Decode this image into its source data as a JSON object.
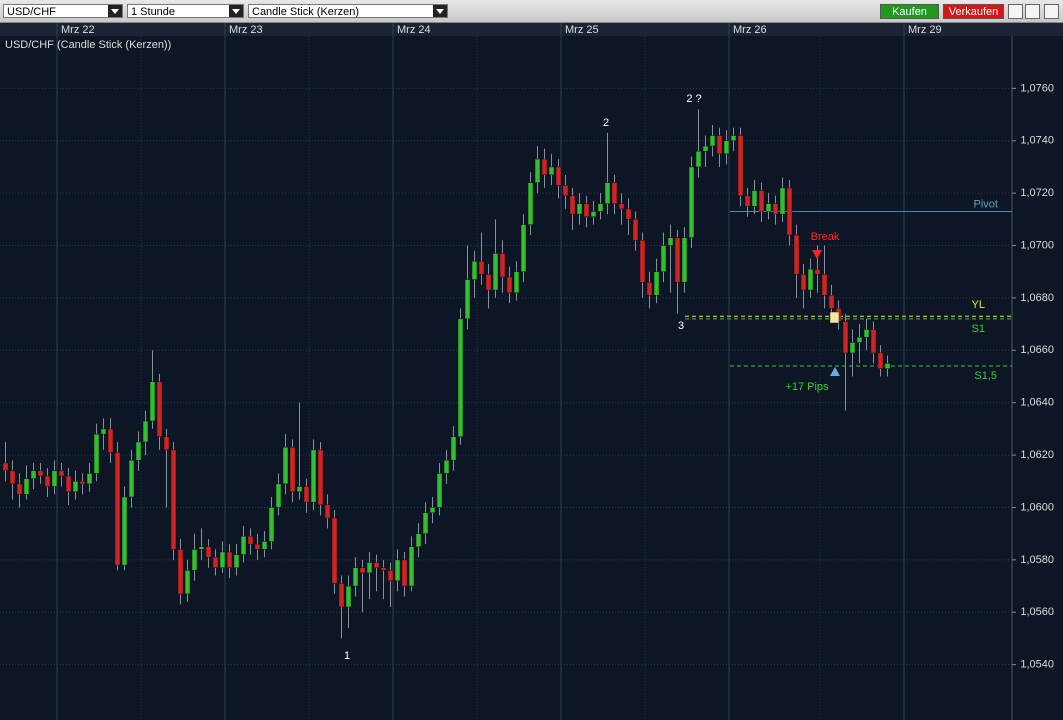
{
  "toolbar": {
    "symbol": "USD/CHF",
    "interval": "1 Stunde",
    "chart_type": "Candle Stick (Kerzen)",
    "buy": "Kaufen",
    "sell": "Verkaufen"
  },
  "chart_data": {
    "type": "candlestick",
    "title": "USD/CHF (Candle Stick (Kerzen))",
    "xticks": [
      {
        "value": 8,
        "label": "Mrz 22"
      },
      {
        "value": 32,
        "label": "Mrz 23"
      },
      {
        "value": 56,
        "label": "Mrz 24"
      },
      {
        "value": 80,
        "label": "Mrz 25"
      },
      {
        "value": 104,
        "label": "Mrz 26"
      },
      {
        "value": 129,
        "label": "Mrz 29"
      }
    ],
    "ylim": [
      1.052,
      1.078
    ],
    "yticks": [
      {
        "value": 1.054,
        "label": "1,0540"
      },
      {
        "value": 1.056,
        "label": "1,0560"
      },
      {
        "value": 1.058,
        "label": "1,0580"
      },
      {
        "value": 1.06,
        "label": "1,0600"
      },
      {
        "value": 1.062,
        "label": "1,0620"
      },
      {
        "value": 1.064,
        "label": "1,0640"
      },
      {
        "value": 1.066,
        "label": "1,0660"
      },
      {
        "value": 1.068,
        "label": "1,0680"
      },
      {
        "value": 1.07,
        "label": "1,0700"
      },
      {
        "value": 1.072,
        "label": "1,0720"
      },
      {
        "value": 1.074,
        "label": "1,0740"
      },
      {
        "value": 1.076,
        "label": "1,0760"
      }
    ],
    "grid": true,
    "up_color": "#2fbf2f",
    "down_color": "#d42222",
    "ohlc": [
      [
        1.0617,
        1.0625,
        1.061,
        1.0614
      ],
      [
        1.0614,
        1.0618,
        1.0603,
        1.0609
      ],
      [
        1.0609,
        1.0613,
        1.06,
        1.0605
      ],
      [
        1.0605,
        1.0616,
        1.0603,
        1.0611
      ],
      [
        1.0611,
        1.0617,
        1.0607,
        1.0614
      ],
      [
        1.0614,
        1.0617,
        1.0609,
        1.0612
      ],
      [
        1.0612,
        1.0615,
        1.0604,
        1.0608
      ],
      [
        1.0608,
        1.0618,
        1.0605,
        1.0614
      ],
      [
        1.0614,
        1.0617,
        1.0608,
        1.0612
      ],
      [
        1.0612,
        1.0615,
        1.0601,
        1.0606
      ],
      [
        1.0606,
        1.0614,
        1.0603,
        1.061
      ],
      [
        1.061,
        1.0613,
        1.0605,
        1.0609
      ],
      [
        1.0609,
        1.0617,
        1.0606,
        1.0613
      ],
      [
        1.0613,
        1.0632,
        1.061,
        1.0628
      ],
      [
        1.0628,
        1.0634,
        1.0622,
        1.063
      ],
      [
        1.063,
        1.0634,
        1.0617,
        1.0621
      ],
      [
        1.0621,
        1.0625,
        1.0576,
        1.0578
      ],
      [
        1.0578,
        1.0608,
        1.0576,
        1.0604
      ],
      [
        1.0604,
        1.0622,
        1.06,
        1.0618
      ],
      [
        1.0618,
        1.0629,
        1.0614,
        1.0625
      ],
      [
        1.0625,
        1.0637,
        1.062,
        1.0633
      ],
      [
        1.0633,
        1.066,
        1.063,
        1.0648
      ],
      [
        1.0648,
        1.0651,
        1.0622,
        1.0627
      ],
      [
        1.0627,
        1.063,
        1.06,
        1.0622
      ],
      [
        1.0622,
        1.0625,
        1.058,
        1.0584
      ],
      [
        1.0584,
        1.0588,
        1.0563,
        1.0567
      ],
      [
        1.0567,
        1.058,
        1.0564,
        1.0576
      ],
      [
        1.0576,
        1.059,
        1.0572,
        1.0584
      ],
      [
        1.0584,
        1.0592,
        1.058,
        1.0585
      ],
      [
        1.0585,
        1.0588,
        1.0577,
        1.0581
      ],
      [
        1.0581,
        1.0584,
        1.0574,
        1.0577
      ],
      [
        1.0577,
        1.0587,
        1.0575,
        1.0583
      ],
      [
        1.0583,
        1.0586,
        1.0573,
        1.0577
      ],
      [
        1.0577,
        1.0586,
        1.0574,
        1.0582
      ],
      [
        1.0582,
        1.0593,
        1.0579,
        1.0589
      ],
      [
        1.0589,
        1.0592,
        1.0582,
        1.0586
      ],
      [
        1.0586,
        1.059,
        1.058,
        1.0584
      ],
      [
        1.0584,
        1.0591,
        1.0581,
        1.0587
      ],
      [
        1.0587,
        1.0604,
        1.0584,
        1.06
      ],
      [
        1.06,
        1.0613,
        1.0597,
        1.0609
      ],
      [
        1.0609,
        1.0628,
        1.0605,
        1.0623
      ],
      [
        1.0623,
        1.0626,
        1.0602,
        1.0606
      ],
      [
        1.0606,
        1.064,
        1.0603,
        1.0608
      ],
      [
        1.0608,
        1.0611,
        1.0598,
        1.0602
      ],
      [
        1.0602,
        1.0626,
        1.0599,
        1.0622
      ],
      [
        1.0622,
        1.0625,
        1.0597,
        1.0601
      ],
      [
        1.0601,
        1.0605,
        1.0592,
        1.0596
      ],
      [
        1.0596,
        1.0599,
        1.0567,
        1.0571
      ],
      [
        1.0571,
        1.0574,
        1.055,
        1.0562
      ],
      [
        1.0562,
        1.0574,
        1.0554,
        1.057
      ],
      [
        1.057,
        1.0581,
        1.0566,
        1.0577
      ],
      [
        1.0577,
        1.058,
        1.056,
        1.0575
      ],
      [
        1.0575,
        1.0583,
        1.0565,
        1.0579
      ],
      [
        1.0579,
        1.0582,
        1.0568,
        1.0577
      ],
      [
        1.0577,
        1.058,
        1.0565,
        1.0576
      ],
      [
        1.0576,
        1.0579,
        1.0562,
        1.0572
      ],
      [
        1.0572,
        1.0584,
        1.0568,
        1.058
      ],
      [
        1.058,
        1.0583,
        1.0566,
        1.057
      ],
      [
        1.057,
        1.0589,
        1.0568,
        1.0585
      ],
      [
        1.0585,
        1.0594,
        1.0581,
        1.059
      ],
      [
        1.059,
        1.0602,
        1.0586,
        1.0598
      ],
      [
        1.0598,
        1.0604,
        1.0594,
        1.06
      ],
      [
        1.06,
        1.0617,
        1.0597,
        1.0613
      ],
      [
        1.0613,
        1.0622,
        1.0609,
        1.0618
      ],
      [
        1.0618,
        1.0631,
        1.0614,
        1.0627
      ],
      [
        1.0627,
        1.0676,
        1.0624,
        1.0672
      ],
      [
        1.0672,
        1.07,
        1.0668,
        1.0687
      ],
      [
        1.0687,
        1.0698,
        1.068,
        1.0694
      ],
      [
        1.0694,
        1.0705,
        1.0685,
        1.0689
      ],
      [
        1.0689,
        1.0693,
        1.0676,
        1.0683
      ],
      [
        1.0683,
        1.071,
        1.068,
        1.0697
      ],
      [
        1.0697,
        1.0702,
        1.0682,
        1.0688
      ],
      [
        1.0688,
        1.0692,
        1.0678,
        1.0682
      ],
      [
        1.0682,
        1.0694,
        1.0679,
        1.069
      ],
      [
        1.069,
        1.0712,
        1.0686,
        1.0708
      ],
      [
        1.0708,
        1.0728,
        1.0704,
        1.0724
      ],
      [
        1.0724,
        1.0738,
        1.072,
        1.0733
      ],
      [
        1.0733,
        1.0737,
        1.0722,
        1.0727
      ],
      [
        1.0727,
        1.0735,
        1.0723,
        1.073
      ],
      [
        1.073,
        1.0733,
        1.0718,
        1.0723
      ],
      [
        1.0723,
        1.0727,
        1.0714,
        1.0719
      ],
      [
        1.0719,
        1.0722,
        1.0706,
        1.0712
      ],
      [
        1.0712,
        1.072,
        1.0708,
        1.0716
      ],
      [
        1.0716,
        1.0719,
        1.0707,
        1.0711
      ],
      [
        1.0711,
        1.0717,
        1.0708,
        1.0713
      ],
      [
        1.0713,
        1.072,
        1.071,
        1.0716
      ],
      [
        1.0716,
        1.0743,
        1.0712,
        1.0724
      ],
      [
        1.0724,
        1.0727,
        1.0712,
        1.0716
      ],
      [
        1.0716,
        1.072,
        1.0708,
        1.0714
      ],
      [
        1.0714,
        1.0718,
        1.0704,
        1.071
      ],
      [
        1.071,
        1.0713,
        1.0698,
        1.0702
      ],
      [
        1.0702,
        1.0705,
        1.068,
        1.0686
      ],
      [
        1.0686,
        1.069,
        1.0676,
        1.0681
      ],
      [
        1.0681,
        1.0695,
        1.0678,
        1.069
      ],
      [
        1.069,
        1.0705,
        1.0686,
        1.07
      ],
      [
        1.07,
        1.0708,
        1.0682,
        1.0703
      ],
      [
        1.0703,
        1.0706,
        1.0674,
        1.0686
      ],
      [
        1.0686,
        1.0707,
        1.0682,
        1.0703
      ],
      [
        1.0703,
        1.0734,
        1.0699,
        1.073
      ],
      [
        1.073,
        1.0752,
        1.0726,
        1.0736
      ],
      [
        1.0736,
        1.0742,
        1.073,
        1.0738
      ],
      [
        1.0738,
        1.0746,
        1.0734,
        1.0742
      ],
      [
        1.0742,
        1.0745,
        1.073,
        1.0735
      ],
      [
        1.0735,
        1.0744,
        1.0731,
        1.074
      ],
      [
        1.074,
        1.0745,
        1.0736,
        1.0742
      ],
      [
        1.0742,
        1.0745,
        1.0715,
        1.0719
      ],
      [
        1.0719,
        1.0722,
        1.0711,
        1.0715
      ],
      [
        1.0715,
        1.0725,
        1.0712,
        1.0721
      ],
      [
        1.0721,
        1.0724,
        1.0709,
        1.0713
      ],
      [
        1.0713,
        1.072,
        1.071,
        1.0716
      ],
      [
        1.0716,
        1.0719,
        1.0708,
        1.0712
      ],
      [
        1.0712,
        1.0726,
        1.0709,
        1.0722
      ],
      [
        1.0722,
        1.0725,
        1.07,
        1.0704
      ],
      [
        1.0704,
        1.0708,
        1.068,
        1.0689
      ],
      [
        1.0689,
        1.0693,
        1.0676,
        1.0683
      ],
      [
        1.0683,
        1.0695,
        1.068,
        1.0691
      ],
      [
        1.0691,
        1.07,
        1.0682,
        1.0689
      ],
      [
        1.0689,
        1.07,
        1.0676,
        1.0681
      ],
      [
        1.0681,
        1.0685,
        1.0672,
        1.0676
      ],
      [
        1.0676,
        1.0679,
        1.0668,
        1.0671
      ],
      [
        1.0671,
        1.0674,
        1.0637,
        1.0659
      ],
      [
        1.0659,
        1.0668,
        1.065,
        1.0663
      ],
      [
        1.0663,
        1.067,
        1.0655,
        1.0665
      ],
      [
        1.0665,
        1.0672,
        1.066,
        1.0668
      ],
      [
        1.0668,
        1.0671,
        1.0655,
        1.0659
      ],
      [
        1.0659,
        1.0662,
        1.065,
        1.0653
      ],
      [
        1.0653,
        1.0658,
        1.065,
        1.0655
      ]
    ],
    "levels": [
      {
        "label": "Pivot",
        "value": 1.0713,
        "color": "#4f86b8"
      },
      {
        "label": "YL",
        "value": 1.0673,
        "color": "#e6e632"
      },
      {
        "label": "S1",
        "value": 1.0672,
        "color": "#3cc83c"
      },
      {
        "label": "S1,5",
        "value": 1.0654,
        "color": "#3cc83c"
      }
    ],
    "annotations": [
      {
        "text": "2 ?",
        "color": "#ffffff"
      },
      {
        "text": "2",
        "color": "#ffffff"
      },
      {
        "text": "3",
        "color": "#ffffff"
      },
      {
        "text": "1",
        "color": "#ffffff"
      },
      {
        "text": "Break",
        "color": "#ff2a2a"
      },
      {
        "text": "+17 Pips",
        "color": "#33d033"
      }
    ]
  }
}
